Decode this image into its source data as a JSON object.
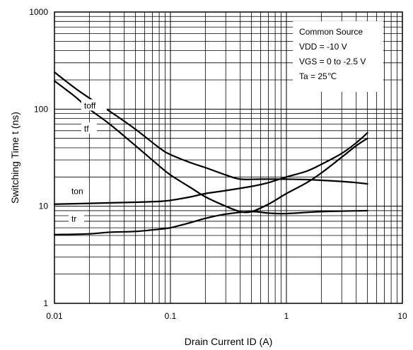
{
  "chart_data": {
    "type": "line",
    "xlabel": "Drain Current  ID (A)",
    "ylabel": "Switching Time  t (ns)",
    "xscale": "log",
    "yscale": "log",
    "xlim": [
      0.01,
      10
    ],
    "ylim": [
      1,
      1000
    ],
    "grid": true,
    "x_ticks": [
      "0.01",
      "0.1",
      "1",
      "10"
    ],
    "y_ticks": [
      "1",
      "10",
      "100",
      "1000"
    ],
    "conditions": [
      "Common Source",
      "VDD = -10 V",
      "VGS = 0 to -2.5 V",
      "Ta = 25℃"
    ],
    "series": [
      {
        "name": "toff",
        "x": [
          0.01,
          0.015,
          0.02,
          0.03,
          0.05,
          0.08,
          0.1,
          0.15,
          0.2,
          0.3,
          0.4,
          0.6,
          0.8,
          1,
          1.5,
          2,
          3,
          4,
          5
        ],
        "y": [
          240,
          165,
          130,
          95,
          62,
          40,
          34,
          28,
          25,
          21,
          19,
          19,
          19,
          19,
          18.8,
          18.5,
          18,
          17.5,
          17
        ]
      },
      {
        "name": "tf",
        "x": [
          0.01,
          0.015,
          0.02,
          0.03,
          0.05,
          0.08,
          0.1,
          0.15,
          0.2,
          0.3,
          0.4,
          0.5,
          0.7,
          1,
          1.5,
          2,
          3,
          4,
          5
        ],
        "y": [
          195,
          135,
          100,
          70,
          42,
          26,
          21,
          15.5,
          12.5,
          10,
          8.8,
          8.8,
          10.5,
          13.5,
          17.5,
          22,
          32,
          42,
          50
        ]
      },
      {
        "name": "ton",
        "x": [
          0.01,
          0.02,
          0.05,
          0.08,
          0.1,
          0.15,
          0.2,
          0.3,
          0.5,
          0.7,
          1,
          1.5,
          2,
          3,
          4,
          5
        ],
        "y": [
          10.5,
          10.7,
          11,
          11.2,
          11.5,
          12.5,
          13.5,
          14.5,
          16,
          17.5,
          20,
          23,
          27,
          35,
          45,
          57
        ]
      },
      {
        "name": "tr",
        "x": [
          0.01,
          0.02,
          0.03,
          0.05,
          0.08,
          0.1,
          0.15,
          0.2,
          0.3,
          0.5,
          0.7,
          1,
          2,
          5
        ],
        "y": [
          5.1,
          5.2,
          5.4,
          5.5,
          5.8,
          6,
          6.8,
          7.5,
          8.3,
          8.8,
          8.5,
          8.4,
          8.8,
          9
        ]
      }
    ]
  }
}
